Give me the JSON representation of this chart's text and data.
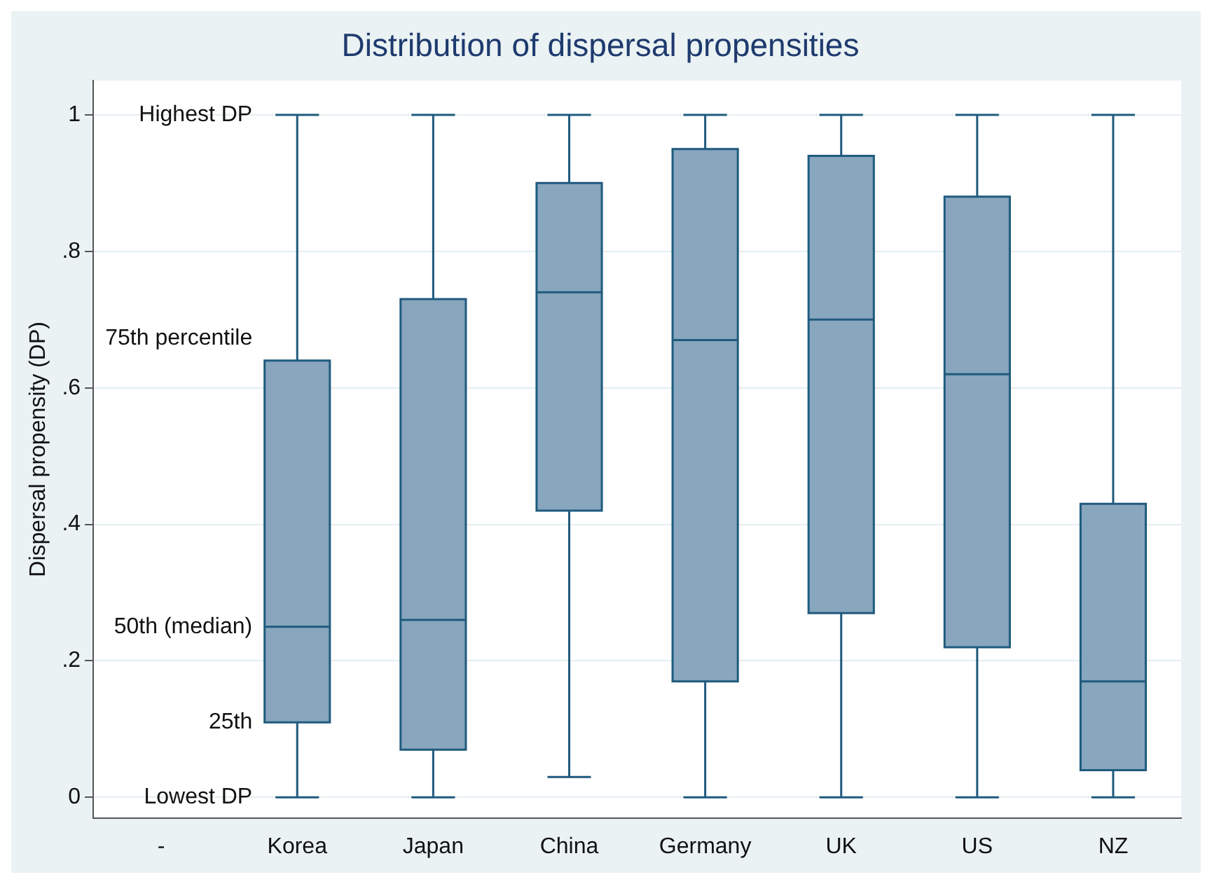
{
  "chart_data": {
    "type": "box",
    "title": "Distribution of dispersal propensities",
    "ylabel": "Dispersal propensity (DP)",
    "categories": [
      "-",
      "Korea",
      "Japan",
      "China",
      "Germany",
      "UK",
      "US",
      "NZ"
    ],
    "boxes": [
      null,
      {
        "low": 0,
        "q1": 0.11,
        "median": 0.25,
        "q3": 0.64,
        "high": 1
      },
      {
        "low": 0,
        "q1": 0.07,
        "median": 0.26,
        "q3": 0.73,
        "high": 1
      },
      {
        "low": 0.03,
        "q1": 0.42,
        "median": 0.74,
        "q3": 0.9,
        "high": 1
      },
      {
        "low": 0,
        "q1": 0.17,
        "median": 0.67,
        "q3": 0.95,
        "high": 1
      },
      {
        "low": 0,
        "q1": 0.27,
        "median": 0.7,
        "q3": 0.94,
        "high": 1
      },
      {
        "low": 0,
        "q1": 0.22,
        "median": 0.62,
        "q3": 0.88,
        "high": 1
      },
      {
        "low": 0,
        "q1": 0.04,
        "median": 0.17,
        "q3": 0.43,
        "high": 1
      }
    ],
    "color": "#88a6bd",
    "ylim": [
      -0.03,
      1.05
    ],
    "yticks": [
      0,
      {
        "value": 0.2,
        "label": ".2"
      },
      {
        "value": 0.4,
        "label": ".4"
      },
      {
        "value": 0.6,
        "label": ".6"
      },
      {
        "value": 0.8,
        "label": ".8"
      },
      1
    ],
    "annotations": [
      "Highest DP",
      "75th percentile",
      "50th (median)",
      "25th",
      "Lowest DP"
    ],
    "grid": "y",
    "legend": false
  }
}
